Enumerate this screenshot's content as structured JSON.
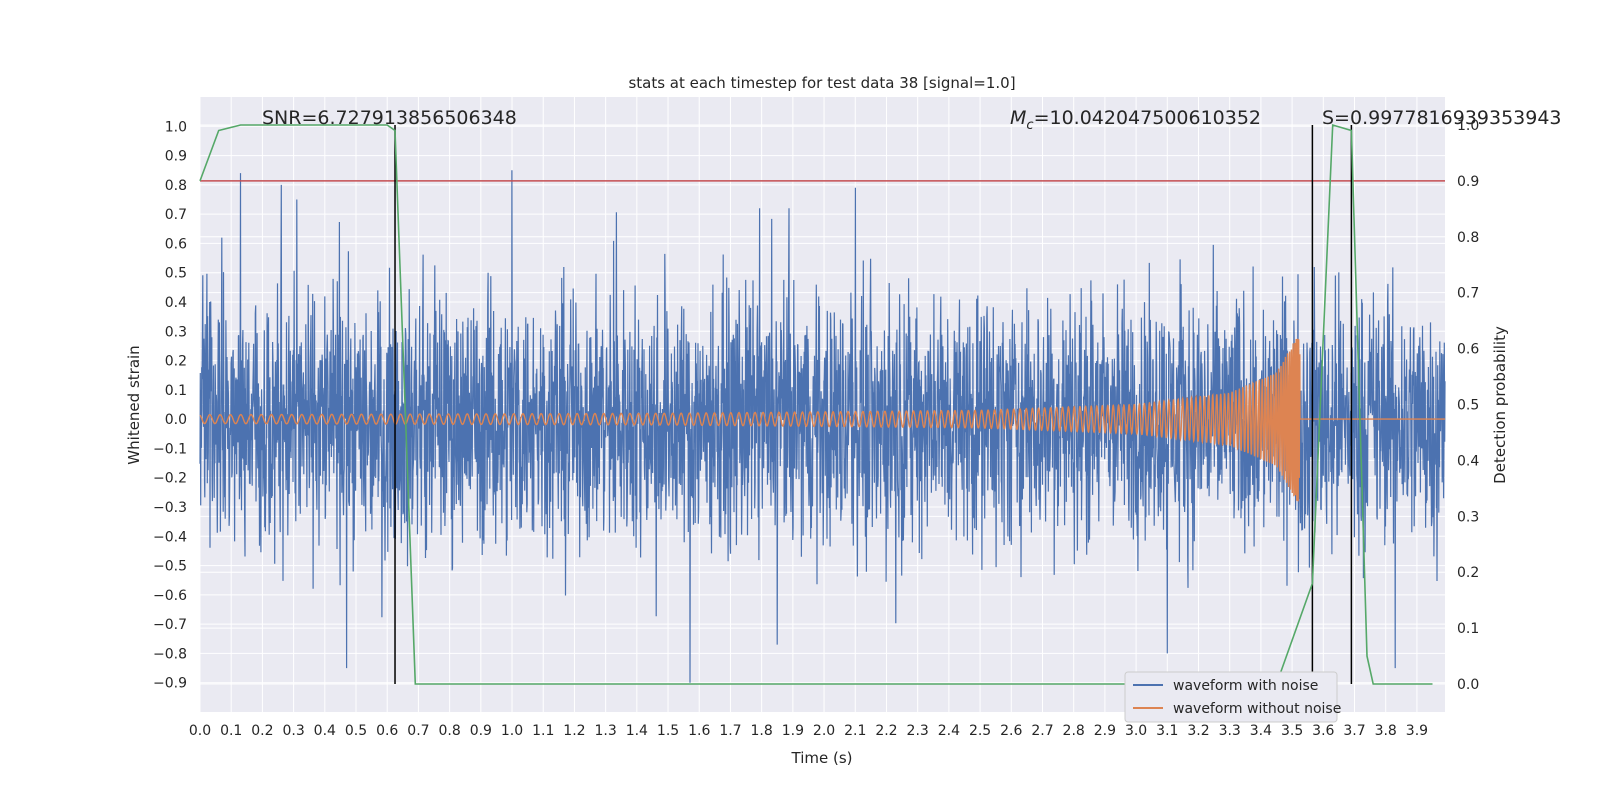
{
  "chart_data": {
    "type": "line",
    "title": "stats at each timestep for test data 38 [signal=1.0]",
    "xlabel": "Time (s)",
    "ylabel": "Whitened strain",
    "y2label": "Detection probability",
    "xlim": [
      0.0,
      3.99
    ],
    "ylim": [
      -1.0,
      1.1
    ],
    "y2lim": [
      -0.05,
      1.05
    ],
    "grid": true,
    "legend_position": "lower-right",
    "x_ticks": [
      0.0,
      0.1,
      0.2,
      0.3,
      0.4,
      0.5,
      0.6,
      0.7,
      0.8,
      0.9,
      1.0,
      1.1,
      1.2,
      1.3,
      1.4,
      1.5,
      1.6,
      1.7,
      1.8,
      1.9,
      2.0,
      2.1,
      2.2,
      2.3,
      2.4,
      2.5,
      2.6,
      2.7,
      2.8,
      2.9,
      3.0,
      3.1,
      3.2,
      3.3,
      3.4,
      3.5,
      3.6,
      3.7,
      3.8,
      3.9
    ],
    "y_ticks": [
      1.0,
      0.9,
      0.8,
      0.7,
      0.6,
      0.5,
      0.4,
      0.3,
      0.2,
      0.1,
      0.0,
      -0.1,
      -0.2,
      -0.3,
      -0.4,
      -0.5,
      -0.6,
      -0.7,
      -0.8,
      -0.9
    ],
    "y2_ticks": [
      1.0,
      0.9,
      0.8,
      0.7,
      0.6,
      0.5,
      0.4,
      0.3,
      0.2,
      0.1,
      0.0
    ],
    "threshold": {
      "axis": "y2",
      "value": 0.9,
      "color": "#c44e52"
    },
    "vertical_lines": [
      0.625,
      3.565,
      3.69
    ],
    "annotations": {
      "snr": "SNR=6.727913856506348",
      "mc_symbol": "M",
      "mc_sub": "c",
      "mc_value": "=10.042047500610352",
      "s": "S=0.9977816939353943"
    },
    "series": [
      {
        "name": "waveform with noise",
        "color": "#4c72b0",
        "axis": "y",
        "description": "noisy whitened strain, amplitude mostly within about -0.7..0.85",
        "peaks": [
          {
            "t": 0.07,
            "v": 0.62
          },
          {
            "t": 0.13,
            "v": 0.84
          },
          {
            "t": 0.26,
            "v": 0.8
          },
          {
            "t": 0.31,
            "v": 0.75
          },
          {
            "t": 1.0,
            "v": 0.85
          },
          {
            "t": 2.1,
            "v": 0.79
          },
          {
            "t": 1.57,
            "v": -0.9
          },
          {
            "t": 0.47,
            "v": -0.85
          },
          {
            "t": 3.1,
            "v": -0.8
          },
          {
            "t": 3.83,
            "v": -0.85
          },
          {
            "t": 1.85,
            "v": -0.77
          }
        ]
      },
      {
        "name": "waveform without noise",
        "color": "#dd8452",
        "axis": "y",
        "description": "chirp signal, amplitude grows toward merger",
        "envelope": [
          {
            "t": 0.0,
            "v": 0.015
          },
          {
            "t": 1.5,
            "v": 0.02
          },
          {
            "t": 2.5,
            "v": 0.03
          },
          {
            "t": 3.0,
            "v": 0.05
          },
          {
            "t": 3.3,
            "v": 0.09
          },
          {
            "t": 3.45,
            "v": 0.16
          },
          {
            "t": 3.52,
            "v": 0.29
          },
          {
            "t": 3.54,
            "v": 0.0
          }
        ]
      },
      {
        "name": "detection probability",
        "color": "#55a868",
        "axis": "y2",
        "points": [
          {
            "t": 0.0,
            "v": 0.9
          },
          {
            "t": 0.06,
            "v": 0.99
          },
          {
            "t": 0.13,
            "v": 1.0
          },
          {
            "t": 0.6,
            "v": 1.0
          },
          {
            "t": 0.625,
            "v": 0.99
          },
          {
            "t": 0.69,
            "v": 0.0
          },
          {
            "t": 2.8,
            "v": 0.0
          },
          {
            "t": 3.45,
            "v": 0.0
          },
          {
            "t": 3.565,
            "v": 0.18
          },
          {
            "t": 3.63,
            "v": 1.0
          },
          {
            "t": 3.69,
            "v": 0.99
          },
          {
            "t": 3.74,
            "v": 0.05
          },
          {
            "t": 3.76,
            "v": 0.0
          },
          {
            "t": 3.95,
            "v": 0.0
          }
        ]
      }
    ]
  }
}
